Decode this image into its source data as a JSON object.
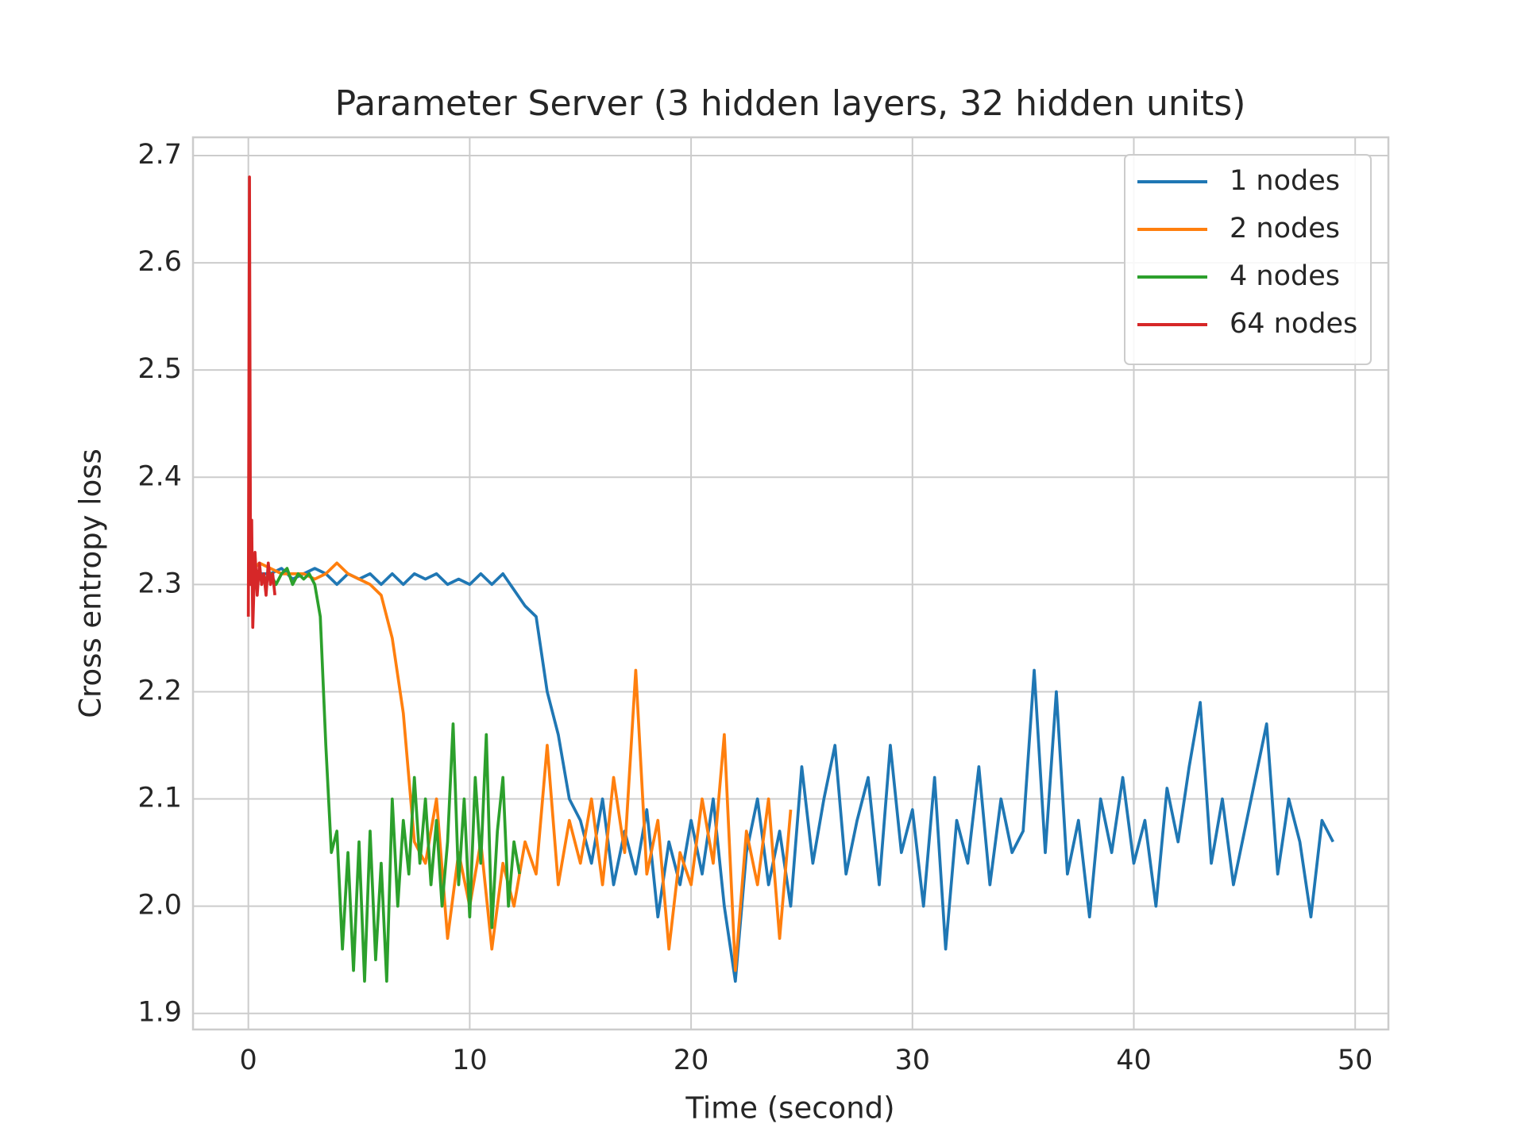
{
  "chart_data": {
    "type": "line",
    "title": "Parameter Server (3 hidden layers, 32 hidden units)",
    "x_label": "Time (second)",
    "y_label": "Cross entropy loss",
    "xlim": [
      -2.5,
      51.5
    ],
    "ylim": [
      1.885,
      2.717
    ],
    "xticks": [
      0,
      10,
      20,
      30,
      40,
      50
    ],
    "yticks": [
      1.9,
      {
        "value": 2,
        "label": "2.0"
      },
      2.1,
      2.2,
      2.3,
      2.4,
      2.5,
      2.6,
      2.7
    ],
    "grid": true,
    "legend": "upper right",
    "series": [
      {
        "name": "1 nodes",
        "color": "#1f77b4",
        "x": [
          0,
          0.5,
          1,
          1.5,
          2,
          2.5,
          3,
          3.5,
          4,
          4.5,
          5,
          5.5,
          6,
          6.5,
          7,
          7.5,
          8,
          8.5,
          9,
          9.5,
          10,
          10.5,
          11,
          11.5,
          12,
          12.5,
          13,
          13.5,
          14,
          14.5,
          15,
          15.5,
          16,
          16.5,
          17,
          17.5,
          18,
          18.5,
          19,
          19.5,
          20,
          20.5,
          21,
          21.5,
          22,
          22.5,
          23,
          23.5,
          24,
          24.5,
          25,
          25.5,
          26,
          26.5,
          27,
          27.5,
          28,
          28.5,
          29,
          29.5,
          30,
          30.5,
          31,
          31.5,
          32,
          32.5,
          33,
          33.5,
          34,
          34.5,
          35,
          35.5,
          36,
          36.5,
          37,
          37.5,
          38,
          38.5,
          39,
          39.5,
          40,
          40.5,
          41,
          41.5,
          42,
          42.5,
          43,
          43.5,
          44,
          44.5,
          45,
          45.5,
          46,
          46.5,
          47,
          47.5,
          48,
          48.5,
          49
        ],
        "values": [
          2.31,
          2.31,
          2.31,
          2.315,
          2.305,
          2.31,
          2.315,
          2.31,
          2.3,
          2.31,
          2.305,
          2.31,
          2.3,
          2.31,
          2.3,
          2.31,
          2.305,
          2.31,
          2.3,
          2.305,
          2.3,
          2.31,
          2.3,
          2.31,
          2.295,
          2.28,
          2.27,
          2.2,
          2.16,
          2.1,
          2.08,
          2.04,
          2.1,
          2.02,
          2.07,
          2.03,
          2.09,
          1.99,
          2.06,
          2.02,
          2.08,
          2.03,
          2.1,
          2.0,
          1.93,
          2.05,
          2.1,
          2.02,
          2.07,
          2.0,
          2.13,
          2.04,
          2.1,
          2.15,
          2.03,
          2.08,
          2.12,
          2.02,
          2.15,
          2.05,
          2.09,
          2.0,
          2.12,
          1.96,
          2.08,
          2.04,
          2.13,
          2.02,
          2.1,
          2.05,
          2.07,
          2.22,
          2.05,
          2.2,
          2.03,
          2.08,
          1.99,
          2.1,
          2.05,
          2.12,
          2.04,
          2.08,
          2.0,
          2.11,
          2.06,
          2.13,
          2.19,
          2.04,
          2.1,
          2.02,
          2.07,
          2.12,
          2.17,
          2.03,
          2.1,
          2.06,
          1.99,
          2.08,
          2.06
        ]
      },
      {
        "name": "2 nodes",
        "color": "#ff7f0e",
        "x": [
          0,
          0.5,
          1,
          1.5,
          2,
          2.5,
          3,
          3.5,
          4,
          4.5,
          5,
          5.5,
          6,
          6.5,
          7,
          7.5,
          8,
          8.5,
          9,
          9.5,
          10,
          10.5,
          11,
          11.5,
          12,
          12.5,
          13,
          13.5,
          14,
          14.5,
          15,
          15.5,
          16,
          16.5,
          17,
          17.5,
          18,
          18.5,
          19,
          19.5,
          20,
          20.5,
          21,
          21.5,
          22,
          22.5,
          23,
          23.5,
          24,
          24.5
        ],
        "values": [
          2.31,
          2.32,
          2.315,
          2.31,
          2.31,
          2.31,
          2.305,
          2.31,
          2.32,
          2.31,
          2.305,
          2.3,
          2.29,
          2.25,
          2.18,
          2.06,
          2.04,
          2.1,
          1.97,
          2.05,
          2.0,
          2.06,
          1.96,
          2.04,
          2.0,
          2.06,
          2.03,
          2.15,
          2.02,
          2.08,
          2.04,
          2.1,
          2.02,
          2.12,
          2.05,
          2.22,
          2.03,
          2.08,
          1.96,
          2.05,
          2.02,
          2.1,
          2.04,
          2.16,
          1.94,
          2.07,
          2.02,
          2.1,
          1.97,
          2.09
        ]
      },
      {
        "name": "4 nodes",
        "color": "#2ca02c",
        "x": [
          0,
          0.25,
          0.5,
          0.75,
          1,
          1.25,
          1.5,
          1.75,
          2,
          2.25,
          2.5,
          2.75,
          3,
          3.25,
          3.5,
          3.75,
          4,
          4.25,
          4.5,
          4.75,
          5,
          5.25,
          5.5,
          5.75,
          6,
          6.25,
          6.5,
          6.75,
          7,
          7.25,
          7.5,
          7.75,
          8,
          8.25,
          8.5,
          8.75,
          9,
          9.25,
          9.5,
          9.75,
          10,
          10.25,
          10.5,
          10.75,
          11,
          11.25,
          11.5,
          11.75,
          12,
          12.25
        ],
        "values": [
          2.31,
          2.315,
          2.31,
          2.305,
          2.31,
          2.3,
          2.31,
          2.315,
          2.3,
          2.31,
          2.305,
          2.31,
          2.3,
          2.27,
          2.15,
          2.05,
          2.07,
          1.96,
          2.05,
          1.94,
          2.06,
          1.93,
          2.07,
          1.95,
          2.04,
          1.93,
          2.1,
          2.0,
          2.08,
          2.03,
          2.12,
          2.04,
          2.1,
          2.02,
          2.08,
          2.0,
          2.06,
          2.17,
          2.02,
          2.1,
          1.99,
          2.12,
          2.04,
          2.16,
          1.98,
          2.07,
          2.12,
          2.0,
          2.06,
          2.03
        ]
      },
      {
        "name": "64 nodes",
        "color": "#d62728",
        "x": [
          0,
          0.05,
          0.1,
          0.15,
          0.2,
          0.3,
          0.4,
          0.5,
          0.6,
          0.7,
          0.8,
          0.9,
          1.0,
          1.1,
          1.2
        ],
        "values": [
          2.27,
          2.68,
          2.3,
          2.36,
          2.26,
          2.33,
          2.29,
          2.32,
          2.3,
          2.31,
          2.29,
          2.32,
          2.3,
          2.31,
          2.29
        ]
      }
    ]
  }
}
